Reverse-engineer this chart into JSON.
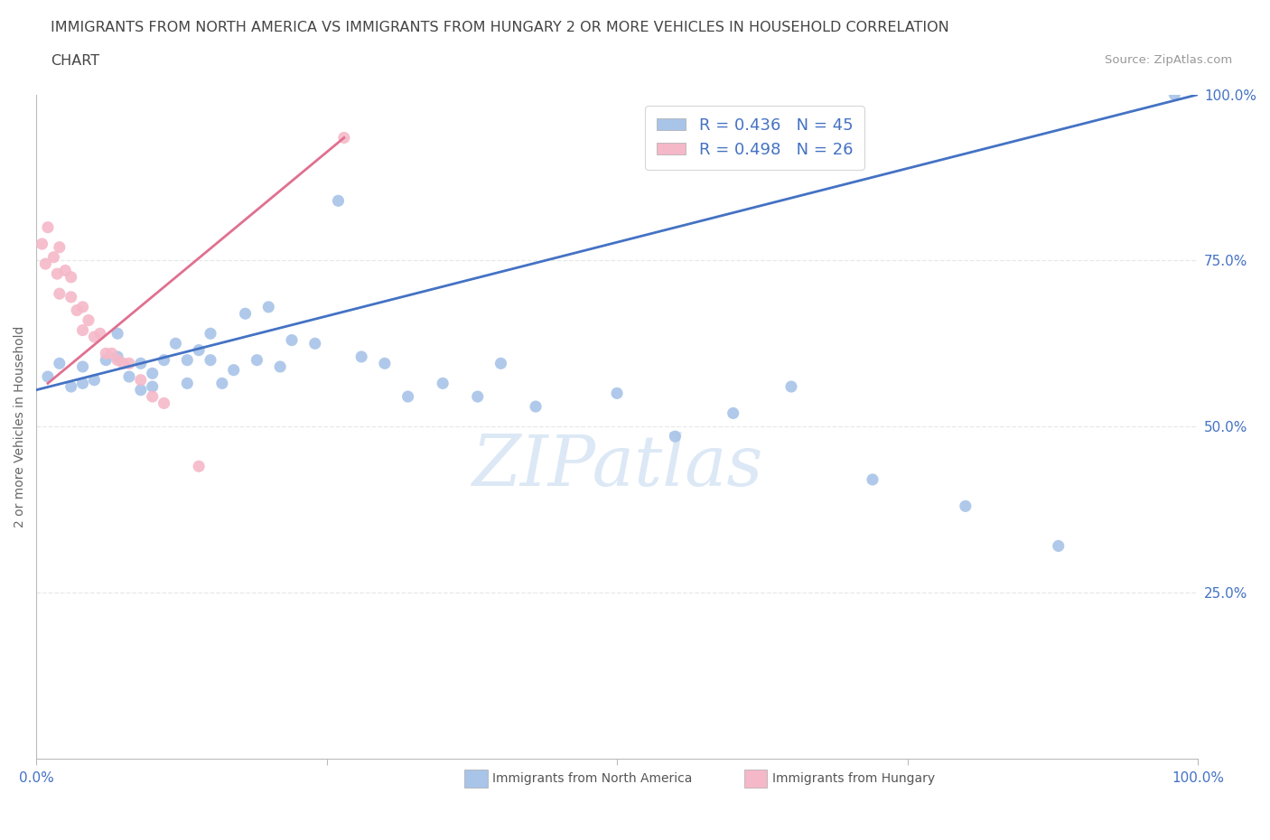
{
  "title_line1": "IMMIGRANTS FROM NORTH AMERICA VS IMMIGRANTS FROM HUNGARY 2 OR MORE VEHICLES IN HOUSEHOLD CORRELATION",
  "title_line2": "CHART",
  "source": "Source: ZipAtlas.com",
  "ylabel": "2 or more Vehicles in Household",
  "xlim": [
    0,
    1.0
  ],
  "ylim": [
    0,
    1.0
  ],
  "ytick_labels": [
    "25.0%",
    "50.0%",
    "75.0%",
    "100.0%"
  ],
  "ytick_positions": [
    0.25,
    0.5,
    0.75,
    1.0
  ],
  "r_blue": 0.436,
  "n_blue": 45,
  "r_pink": 0.498,
  "n_pink": 26,
  "blue_color": "#a8c4e8",
  "pink_color": "#f5b8c8",
  "line_blue": "#4472c4",
  "line_pink": "#e07090",
  "legend_text_color": "#4472c4",
  "title_color": "#444444",
  "source_color": "#999999",
  "watermark_color": "#dce8f5",
  "background_color": "#ffffff",
  "grid_color": "#e8e8e8",
  "blue_scatter_x": [
    0.01,
    0.02,
    0.03,
    0.04,
    0.04,
    0.05,
    0.06,
    0.07,
    0.07,
    0.08,
    0.09,
    0.09,
    0.1,
    0.1,
    0.11,
    0.12,
    0.13,
    0.13,
    0.14,
    0.15,
    0.15,
    0.16,
    0.17,
    0.18,
    0.19,
    0.2,
    0.21,
    0.22,
    0.24,
    0.26,
    0.28,
    0.3,
    0.32,
    0.35,
    0.38,
    0.4,
    0.43,
    0.5,
    0.55,
    0.6,
    0.65,
    0.72,
    0.8,
    0.88,
    0.98
  ],
  "blue_scatter_y": [
    0.575,
    0.595,
    0.56,
    0.565,
    0.59,
    0.57,
    0.6,
    0.605,
    0.64,
    0.575,
    0.595,
    0.555,
    0.58,
    0.56,
    0.6,
    0.625,
    0.6,
    0.565,
    0.615,
    0.64,
    0.6,
    0.565,
    0.585,
    0.67,
    0.6,
    0.68,
    0.59,
    0.63,
    0.625,
    0.84,
    0.605,
    0.595,
    0.545,
    0.565,
    0.545,
    0.595,
    0.53,
    0.55,
    0.485,
    0.52,
    0.56,
    0.42,
    0.38,
    0.32,
    1.0
  ],
  "pink_scatter_x": [
    0.005,
    0.008,
    0.01,
    0.015,
    0.018,
    0.02,
    0.02,
    0.025,
    0.03,
    0.03,
    0.035,
    0.04,
    0.04,
    0.045,
    0.05,
    0.055,
    0.06,
    0.065,
    0.07,
    0.075,
    0.08,
    0.09,
    0.1,
    0.11,
    0.14,
    0.265
  ],
  "pink_scatter_y": [
    0.775,
    0.745,
    0.8,
    0.755,
    0.73,
    0.77,
    0.7,
    0.735,
    0.695,
    0.725,
    0.675,
    0.68,
    0.645,
    0.66,
    0.635,
    0.64,
    0.61,
    0.61,
    0.6,
    0.595,
    0.595,
    0.57,
    0.545,
    0.535,
    0.44,
    0.935
  ]
}
